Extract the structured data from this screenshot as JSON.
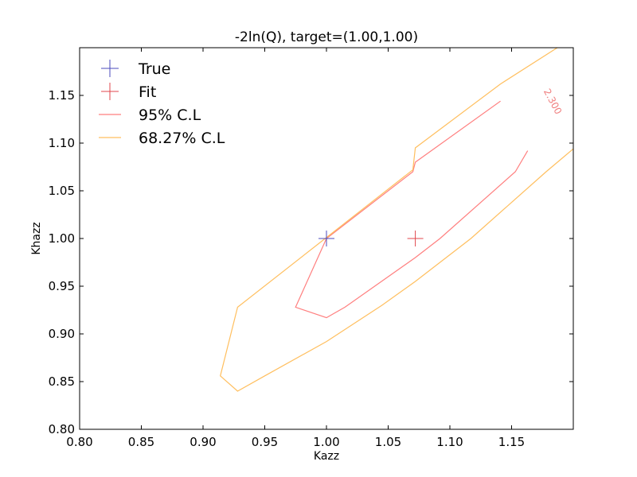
{
  "chart_data": {
    "type": "line",
    "title": "-2ln(Q), target=(1.00,1.00)",
    "xlabel": "Kazz",
    "ylabel": "Khazz",
    "xlim": [
      0.8,
      1.2
    ],
    "ylim": [
      0.8,
      1.2
    ],
    "xticks": [
      "0.80",
      "0.85",
      "0.90",
      "0.95",
      "1.00",
      "1.05",
      "1.10",
      "1.15"
    ],
    "yticks": [
      "0.80",
      "0.85",
      "0.90",
      "0.95",
      "1.00",
      "1.05",
      "1.10",
      "1.15"
    ],
    "grid": false,
    "legend_position": "top-left",
    "legend": [
      {
        "label": "True",
        "marker": "plus",
        "color": "#4b4bbd"
      },
      {
        "label": "Fit",
        "marker": "plus",
        "color": "#e0474c"
      },
      {
        "label": "95% C.L",
        "marker": "line",
        "color": "#ff7f7f"
      },
      {
        "label": "68.27% C.L",
        "marker": "line",
        "color": "#ffbf5f"
      }
    ],
    "points": [
      {
        "name": "True",
        "x": 1.0,
        "y": 1.0,
        "color": "#4b4bbd"
      },
      {
        "name": "Fit",
        "x": 1.072,
        "y": 1.0,
        "color": "#e0474c"
      }
    ],
    "contours": [
      {
        "name": "95% C.L",
        "color": "#ff7f7f",
        "segments": [
          [
            [
              1.0,
              1.0
            ],
            [
              1.07,
              1.07
            ],
            [
              1.072,
              1.08
            ],
            [
              1.141,
              1.144
            ]
          ],
          [
            [
              1.0,
              1.0
            ],
            [
              0.975,
              0.928
            ],
            [
              1.0,
              0.917
            ],
            [
              1.015,
              0.928
            ],
            [
              1.072,
              0.98
            ],
            [
              1.092,
              1.0
            ],
            [
              1.153,
              1.07
            ],
            [
              1.163,
              1.092
            ]
          ]
        ]
      },
      {
        "name": "68.27% C.L",
        "color": "#ffbf5f",
        "segments": [
          [
            [
              0.999,
              1.0
            ],
            [
              1.07,
              1.072
            ],
            [
              1.072,
              1.095
            ],
            [
              1.141,
              1.162
            ],
            [
              1.187,
              1.2
            ]
          ],
          [
            [
              0.999,
              1.0
            ],
            [
              0.928,
              0.928
            ],
            [
              0.914,
              0.856
            ],
            [
              0.928,
              0.84
            ],
            [
              0.95,
              0.856
            ],
            [
              1.0,
              0.892
            ],
            [
              1.045,
              0.93
            ],
            [
              1.072,
              0.955
            ],
            [
              1.117,
              1.0
            ],
            [
              1.178,
              1.07
            ],
            [
              1.2,
              1.094
            ]
          ]
        ]
      }
    ],
    "annotations": [
      {
        "text": "2.300",
        "x": 1.181,
        "y": 1.142,
        "rotation": -62,
        "color": "#f08080"
      }
    ]
  }
}
